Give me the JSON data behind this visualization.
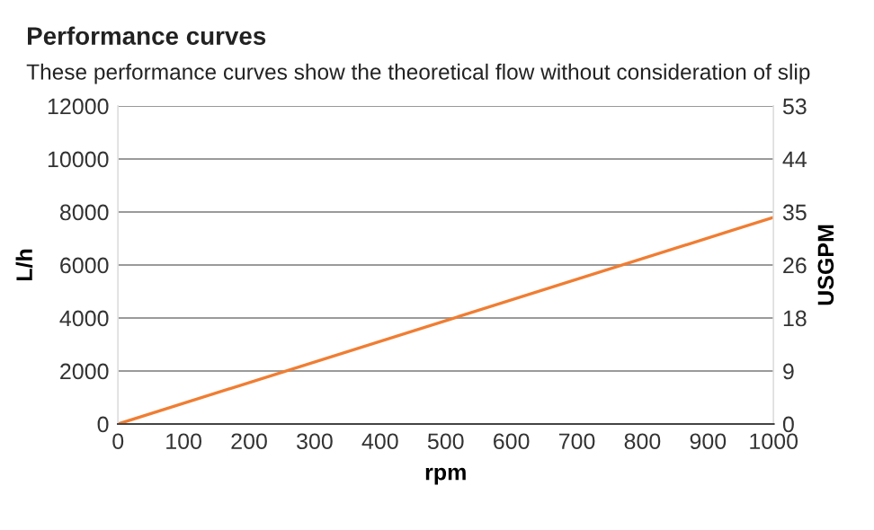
{
  "chart_data": {
    "type": "line",
    "title": "Performance curves",
    "subtitle": "These performance curves show the theoretical flow without consideration of slip",
    "xlabel": "rpm",
    "ylabel": "L/h",
    "y2label": "USGPM",
    "x": [
      0,
      1000
    ],
    "series": [
      {
        "color": "#f07d32",
        "values": [
          0,
          7800
        ]
      }
    ],
    "xlim": [
      0,
      1000
    ],
    "xticks": [
      0,
      100,
      200,
      300,
      400,
      500,
      600,
      700,
      800,
      900,
      1000
    ],
    "ylim": [
      0,
      12000
    ],
    "yticks": [
      0,
      2000,
      4000,
      6000,
      8000,
      10000,
      12000
    ],
    "y2lim": [
      0,
      52.8
    ],
    "y2ticks": [
      0,
      {
        "value": 8.8,
        "label": "9"
      },
      {
        "value": 17.6,
        "label": "18"
      },
      {
        "value": 26.4,
        "label": "26"
      },
      {
        "value": 35.2,
        "label": "35"
      },
      {
        "value": 44.0,
        "label": "44"
      },
      {
        "value": 52.8,
        "label": "53"
      }
    ],
    "grid": "y",
    "legend": false
  }
}
